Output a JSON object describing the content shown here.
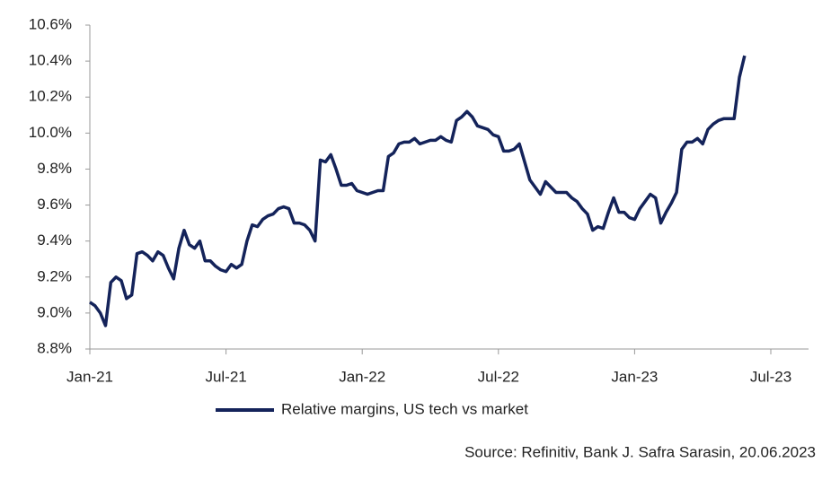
{
  "chart_data": {
    "type": "line",
    "categories": [
      "Jan-21",
      null,
      null,
      null,
      null,
      null,
      null,
      null,
      null,
      null,
      null,
      null,
      null,
      null,
      null,
      null,
      null,
      null,
      null,
      null,
      null,
      null,
      null,
      null,
      null,
      null,
      "Jul-21",
      null,
      null,
      null,
      null,
      null,
      null,
      null,
      null,
      null,
      null,
      null,
      null,
      null,
      null,
      null,
      null,
      null,
      null,
      null,
      null,
      null,
      null,
      null,
      null,
      null,
      "Jan-22",
      null,
      null,
      null,
      null,
      null,
      null,
      null,
      null,
      null,
      null,
      null,
      null,
      null,
      null,
      null,
      null,
      null,
      null,
      null,
      null,
      null,
      null,
      null,
      null,
      null,
      "Jul-22",
      null,
      null,
      null,
      null,
      null,
      null,
      null,
      null,
      null,
      null,
      null,
      null,
      null,
      null,
      null,
      null,
      null,
      null,
      null,
      null,
      null,
      null,
      null,
      null,
      null,
      "Jan-23",
      null,
      null,
      null,
      null,
      null,
      null,
      null,
      null,
      null,
      null,
      null,
      null,
      null,
      null,
      null,
      null,
      null,
      null,
      null,
      null,
      null,
      null,
      null,
      null,
      null,
      "Jul-23"
    ],
    "series": [
      {
        "name": "Relative margins, US tech vs market",
        "color": "#14235a",
        "values": [
          9.06,
          9.04,
          9.0,
          8.93,
          9.17,
          9.2,
          9.18,
          9.08,
          9.1,
          9.33,
          9.34,
          9.32,
          9.29,
          9.34,
          9.32,
          9.25,
          9.19,
          9.36,
          9.46,
          9.38,
          9.36,
          9.4,
          9.29,
          9.29,
          9.26,
          9.24,
          9.23,
          9.27,
          9.25,
          9.27,
          9.4,
          9.49,
          9.48,
          9.52,
          9.54,
          9.55,
          9.58,
          9.59,
          9.58,
          9.5,
          9.5,
          9.49,
          9.46,
          9.4,
          9.85,
          9.84,
          9.88,
          9.8,
          9.71,
          9.71,
          9.72,
          9.68,
          9.67,
          9.66,
          9.67,
          9.68,
          9.68,
          9.87,
          9.89,
          9.94,
          9.95,
          9.95,
          9.97,
          9.94,
          9.95,
          9.96,
          9.96,
          9.98,
          9.96,
          9.95,
          10.07,
          10.09,
          10.12,
          10.09,
          10.04,
          10.03,
          10.02,
          9.99,
          9.98,
          9.9,
          9.9,
          9.91,
          9.94,
          9.84,
          9.74,
          9.7,
          9.66,
          9.73,
          9.7,
          9.67,
          9.67,
          9.67,
          9.64,
          9.62,
          9.58,
          9.55,
          9.46,
          9.48,
          9.47,
          9.56,
          9.64,
          9.56,
          9.56,
          9.53,
          9.52,
          9.58,
          9.62,
          9.66,
          9.64,
          9.5,
          9.56,
          9.61,
          9.67,
          9.91,
          9.95,
          9.95,
          9.97,
          9.94,
          10.02,
          10.05,
          10.07,
          10.08,
          10.08,
          10.08,
          10.31,
          10.43,
          null,
          null,
          null,
          null,
          null
        ]
      }
    ],
    "ylim": [
      8.8,
      10.6
    ],
    "yticks": [
      {
        "value": 8.8,
        "label": "8.8%"
      },
      {
        "value": 9.0,
        "label": "9.0%"
      },
      {
        "value": 9.2,
        "label": "9.2%"
      },
      {
        "value": 9.4,
        "label": "9.4%"
      },
      {
        "value": 9.6,
        "label": "9.6%"
      },
      {
        "value": 9.8,
        "label": "9.8%"
      },
      {
        "value": 10.0,
        "label": "10.0%"
      },
      {
        "value": 10.2,
        "label": "10.2%"
      },
      {
        "value": 10.4,
        "label": "10.4%"
      },
      {
        "value": 10.6,
        "label": "10.6%"
      }
    ],
    "grid": false,
    "legend": "bottom",
    "source": "Source: Refinitiv, Bank J. Safra Sarasin, 20.06.2023"
  }
}
